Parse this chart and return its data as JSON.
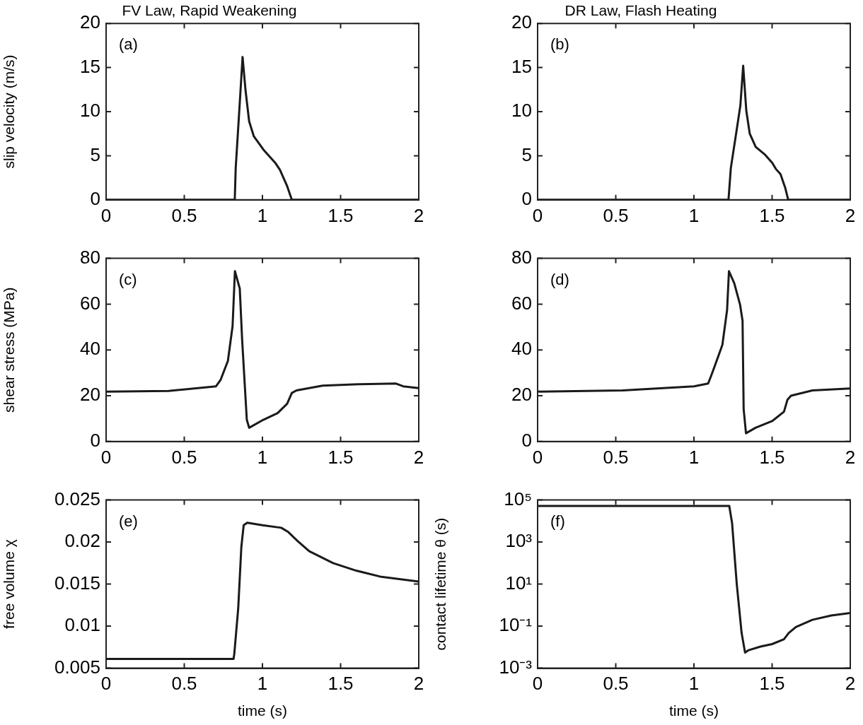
{
  "chart_data": [
    {
      "type": "line",
      "title": "FV Law, Rapid Weakening",
      "ylabel": "slip velocity (m/s)",
      "annotations": [
        "(a)"
      ],
      "xlim": [
        0,
        2
      ],
      "xticks": [
        0,
        0.5,
        1,
        1.5,
        2
      ],
      "ylim": [
        0,
        20
      ],
      "yticks": [
        0,
        5,
        10,
        15,
        20
      ],
      "grid": false,
      "series": [
        {
          "color": "#1a1a1a",
          "x": [
            0,
            0.823,
            0.829,
            0.855,
            0.873,
            0.892,
            0.915,
            0.945,
            1.006,
            1.082,
            1.112,
            1.157,
            1.188,
            2
          ],
          "values": [
            0,
            0,
            3.6,
            11,
            16.2,
            12.4,
            8.9,
            7.2,
            5.7,
            4.2,
            3.4,
            1.6,
            0,
            0
          ]
        }
      ]
    },
    {
      "type": "line",
      "title": "DR Law, Flash Heating",
      "annotations": [
        "(b)"
      ],
      "xlim": [
        0,
        2
      ],
      "xticks": [
        0,
        0.5,
        1,
        1.5,
        2
      ],
      "ylim": [
        0,
        20
      ],
      "yticks": [
        0,
        5,
        10,
        15,
        20
      ],
      "grid": false,
      "series": [
        {
          "color": "#1a1a1a",
          "x": [
            0,
            1.221,
            1.236,
            1.274,
            1.297,
            1.315,
            1.335,
            1.357,
            1.395,
            1.456,
            1.501,
            1.524,
            1.554,
            1.585,
            1.603,
            2
          ],
          "values": [
            0,
            0,
            3.6,
            8,
            10.7,
            15.2,
            10.1,
            7.5,
            6,
            5.1,
            4.2,
            3.5,
            2.9,
            1.3,
            0,
            0
          ]
        }
      ]
    },
    {
      "type": "line",
      "ylabel": "shear stress (MPa)",
      "annotations": [
        "(c)"
      ],
      "xlim": [
        0,
        2
      ],
      "xticks": [
        0,
        0.5,
        1,
        1.5,
        2
      ],
      "ylim": [
        0,
        80
      ],
      "yticks": [
        0,
        20,
        40,
        60,
        80
      ],
      "grid": false,
      "series": [
        {
          "color": "#1a1a1a",
          "x": [
            0,
            0.4,
            0.703,
            0.733,
            0.779,
            0.809,
            0.824,
            0.855,
            0.87,
            0.9,
            0.915,
            1.006,
            1.097,
            1.158,
            1.188,
            1.218,
            1.385,
            1.612,
            1.855,
            1.9,
            2
          ],
          "values": [
            21.8,
            22.1,
            24.1,
            27,
            35.2,
            50.4,
            74.4,
            66.8,
            44.6,
            9.5,
            6,
            9.5,
            12.4,
            16.5,
            21.2,
            22.3,
            24.4,
            25,
            25.3,
            24.1,
            23.3
          ]
        }
      ]
    },
    {
      "type": "line",
      "annotations": [
        "(d)"
      ],
      "xlim": [
        0,
        2
      ],
      "xticks": [
        0,
        0.5,
        1,
        1.5,
        2
      ],
      "ylim": [
        0,
        80
      ],
      "yticks": [
        0,
        20,
        40,
        60,
        80
      ],
      "grid": false,
      "series": [
        {
          "color": "#1a1a1a",
          "x": [
            0,
            0.545,
            1,
            1.091,
            1.114,
            1.136,
            1.182,
            1.212,
            1.224,
            1.258,
            1.295,
            1.311,
            1.318,
            1.333,
            1.394,
            1.5,
            1.576,
            1.598,
            1.621,
            1.758,
            2
          ],
          "values": [
            21.8,
            22.3,
            24.1,
            25.3,
            29.4,
            33.5,
            42.2,
            57.4,
            74.4,
            69.1,
            59.8,
            52.7,
            14.2,
            3.6,
            6,
            8.9,
            13,
            18.2,
            20,
            22.3,
            23.2
          ]
        }
      ]
    },
    {
      "type": "line",
      "xlabel": "time (s)",
      "ylabel": "free volume χ",
      "annotations": [
        "(e)"
      ],
      "xlim": [
        0,
        2
      ],
      "xticks": [
        0,
        0.5,
        1,
        1.5,
        2
      ],
      "ylim": [
        0.005,
        0.025
      ],
      "yticks": [
        0.005,
        0.01,
        0.015,
        0.02,
        0.025
      ],
      "grid": false,
      "series": [
        {
          "color": "#1a1a1a",
          "x": [
            0,
            0.815,
            0.82,
            0.845,
            0.865,
            0.88,
            0.903,
            1,
            1.12,
            1.165,
            1.226,
            1.3,
            1.452,
            1.6,
            1.752,
            2
          ],
          "values": [
            0.0061,
            0.0061,
            0.0067,
            0.0121,
            0.0194,
            0.022,
            0.0223,
            0.022,
            0.0217,
            0.0212,
            0.0201,
            0.0189,
            0.0175,
            0.0166,
            0.0159,
            0.0153
          ]
        }
      ]
    },
    {
      "type": "line",
      "xlabel": "time (s)",
      "ylabel": "contact lifetime θ (s)",
      "annotations": [
        "(f)"
      ],
      "log": "y",
      "xlim": [
        0,
        2
      ],
      "xticks": [
        0,
        0.5,
        1,
        1.5,
        2
      ],
      "ylim": [
        0.001,
        100000
      ],
      "yticks": [
        {
          "value": 0.001,
          "label": "10⁻³"
        },
        {
          "value": 0.1,
          "label": "10⁻¹"
        },
        {
          "value": 10,
          "label": "10¹"
        },
        {
          "value": 1000,
          "label": "10³"
        },
        {
          "value": 100000,
          "label": "10⁵"
        }
      ],
      "grid": false,
      "series": [
        {
          "color": "#1a1a1a",
          "x": [
            0,
            1.226,
            1.244,
            1.274,
            1.305,
            1.327,
            1.35,
            1.426,
            1.5,
            1.576,
            1.606,
            1.652,
            1.758,
            1.879,
            2
          ],
          "values": [
            52000,
            52000,
            8000,
            10,
            0.047,
            0.0055,
            0.0072,
            0.0107,
            0.014,
            0.024,
            0.047,
            0.091,
            0.2,
            0.32,
            0.42
          ]
        }
      ]
    }
  ]
}
